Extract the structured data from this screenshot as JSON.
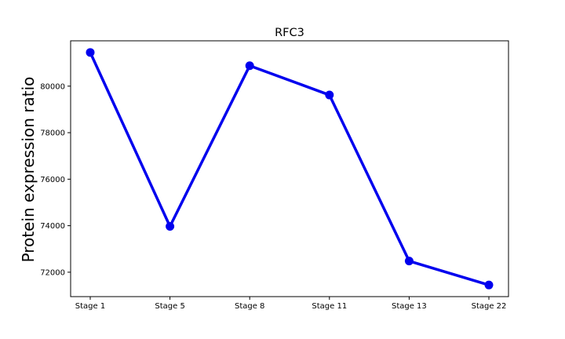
{
  "chart_data": {
    "type": "line",
    "title": "RFC3",
    "xlabel": "",
    "ylabel": "Protein expression ratio",
    "categories": [
      "Stage 1",
      "Stage 5",
      "Stage 8",
      "Stage 11",
      "Stage 13",
      "Stage 22"
    ],
    "series": [
      {
        "values": [
          81450,
          73970,
          80880,
          79620,
          72480,
          71450
        ],
        "color": "#0000ee"
      }
    ],
    "ylim": [
      70950,
      81950
    ],
    "yticks": [
      72000,
      74000,
      76000,
      78000,
      80000
    ],
    "ytick_labels": [
      "72000",
      "74000",
      "76000",
      "78000",
      "80000"
    ],
    "grid": false,
    "legend": "none"
  }
}
